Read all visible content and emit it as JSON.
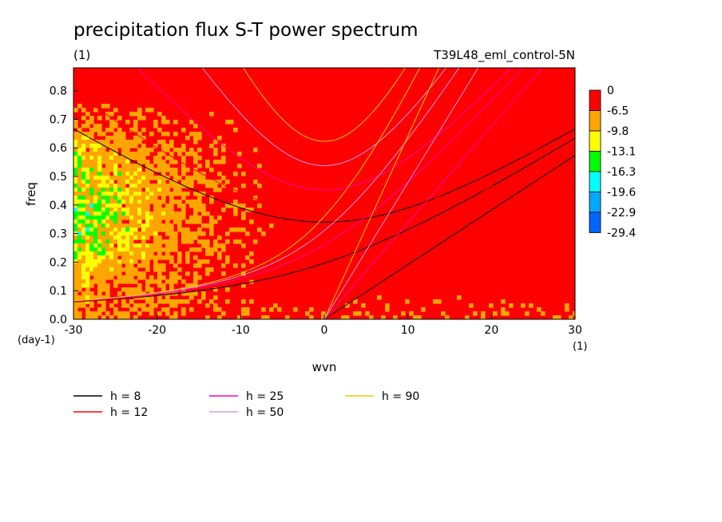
{
  "chart_data": {
    "type": "heatmap",
    "title": "precipitation flux S-T power spectrum",
    "subtitle_left": "(1)",
    "subtitle_right": "T39L48_eml_control-5N",
    "xlabel": "wvn",
    "ylabel": "freq",
    "x_unit_label": "(1)",
    "y_unit_label": "(day-1)",
    "xlim": [
      -30,
      30
    ],
    "ylim": [
      0,
      0.88
    ],
    "x_ticks": [
      -30,
      -20,
      -10,
      0,
      10,
      20,
      30
    ],
    "y_ticks": [
      0.0,
      0.1,
      0.2,
      0.3,
      0.4,
      0.5,
      0.6,
      0.7,
      0.8
    ],
    "x_tick_labels": [
      "-30",
      "-20",
      "-10",
      "0",
      "10",
      "20",
      "30"
    ],
    "y_tick_labels": [
      "0.0",
      "0.1",
      "0.2",
      "0.3",
      "0.4",
      "0.5",
      "0.6",
      "0.7",
      "0.8"
    ],
    "colorbar": {
      "levels": [
        "0",
        "-6.5",
        "-9.8",
        "-13.1",
        "-16.3",
        "-19.6",
        "-22.9",
        "-29.4"
      ],
      "colors": [
        "#ff0000",
        "#ffa500",
        "#ffff00",
        "#00ff00",
        "#00ffff",
        "#00aaff",
        "#0066ff"
      ]
    },
    "background_color": "#ff0000",
    "low_power_region": {
      "description_values": "mostly -6.5 to -16.3 at negative wavenumbers, low frequencies",
      "x_range": [
        -30,
        -5
      ],
      "y_range": [
        0,
        0.7
      ]
    },
    "series": [
      {
        "name": "h =  8",
        "color": "#000000"
      },
      {
        "name": "h = 12",
        "color": "#ff0000"
      },
      {
        "name": "h = 25",
        "color": "#ff00aa"
      },
      {
        "name": "h = 50",
        "color": "#e696e6"
      },
      {
        "name": "h = 90",
        "color": "#e6c800"
      }
    ],
    "legend_labels": [
      "h =  8",
      "h = 12",
      "h = 25",
      "h = 50",
      "h = 90"
    ]
  }
}
